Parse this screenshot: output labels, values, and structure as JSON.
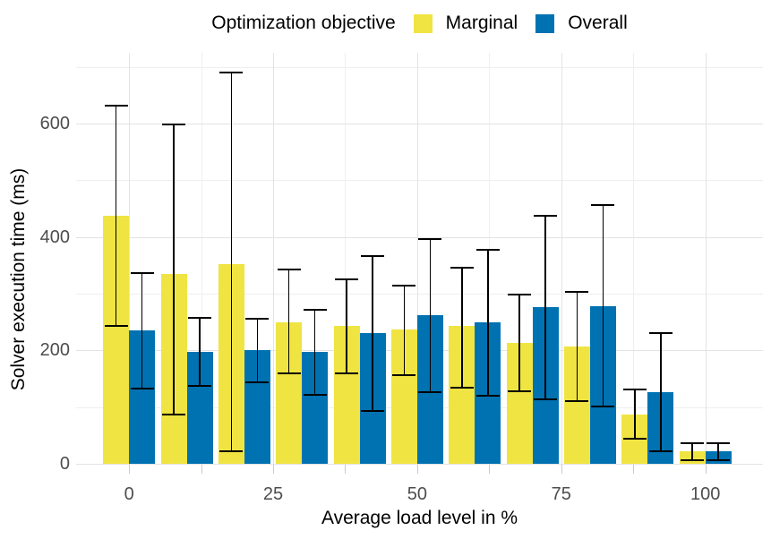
{
  "chart_data": {
    "type": "bar",
    "title": "",
    "legend_title": "Optimization objective",
    "legend_position": "top",
    "xlabel": "Average load level in %",
    "ylabel": "Solver execution time (ms)",
    "categories": [
      0,
      10,
      20,
      30,
      40,
      50,
      60,
      70,
      80,
      90,
      100
    ],
    "series": [
      {
        "name": "Marginal",
        "color": "#F0E442",
        "values": [
          437,
          335,
          352,
          250,
          244,
          237,
          243,
          214,
          207,
          87,
          22
        ],
        "error_low": [
          243,
          87,
          22,
          159,
          160,
          156,
          135,
          128,
          110,
          44,
          6
        ],
        "error_high": [
          632,
          598,
          691,
          342,
          326,
          314,
          346,
          299,
          304,
          131,
          37
        ]
      },
      {
        "name": "Overall",
        "color": "#0072B2",
        "values": [
          235,
          198,
          201,
          198,
          230,
          262,
          250,
          276,
          278,
          127,
          22
        ],
        "error_low": [
          132,
          138,
          144,
          122,
          93,
          127,
          120,
          114,
          101,
          22,
          7
        ],
        "error_high": [
          337,
          257,
          256,
          271,
          367,
          397,
          378,
          438,
          456,
          231,
          36
        ]
      }
    ],
    "error_bars": true,
    "grid": true,
    "x_ticks": [
      0,
      25,
      50,
      75,
      100
    ],
    "x_minor_gridlines": [
      12.5,
      37.5,
      62.5,
      87.5
    ],
    "x_tick_marks": [
      0,
      12.5,
      25,
      37.5,
      50,
      62.5,
      75,
      87.5,
      100
    ],
    "y_ticks": [
      0,
      200,
      400,
      600
    ],
    "y_minor_gridlines": [
      100,
      300,
      500,
      700
    ],
    "xlim": [
      -9.2,
      110.0
    ],
    "ylim": [
      0,
      725
    ]
  },
  "colors": {
    "background": "#FFFFFF",
    "grid_major": "#E3E3E3",
    "grid_minor": "#EFEFEF",
    "axis_text": "#4D4D4D",
    "title_text": "#000000",
    "error_bar": "#000000",
    "tick_mark": "#C9C9C9"
  }
}
